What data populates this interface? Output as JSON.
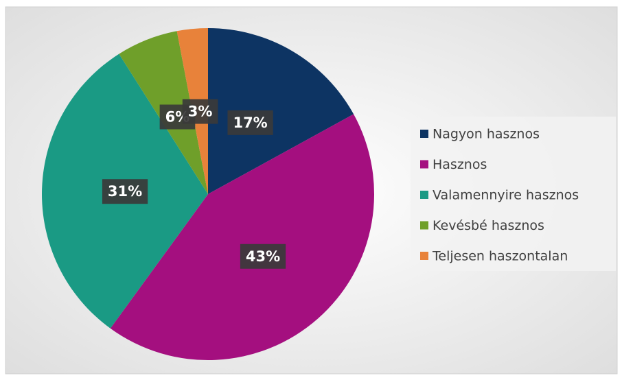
{
  "chart_data": {
    "type": "pie",
    "categories": [
      "Nagyon hasznos",
      "Hasznos",
      "Valamennyire hasznos",
      "Kevésbé hasznos",
      "Teljesen haszontalan"
    ],
    "values": [
      17,
      43,
      31,
      6,
      3
    ],
    "value_labels": [
      "17%",
      "43%",
      "31%",
      "6%",
      "3%"
    ],
    "colors": [
      "#0d3463",
      "#a40f7f",
      "#1a9a84",
      "#6f9f2a",
      "#e8823a"
    ],
    "legend": "right"
  }
}
